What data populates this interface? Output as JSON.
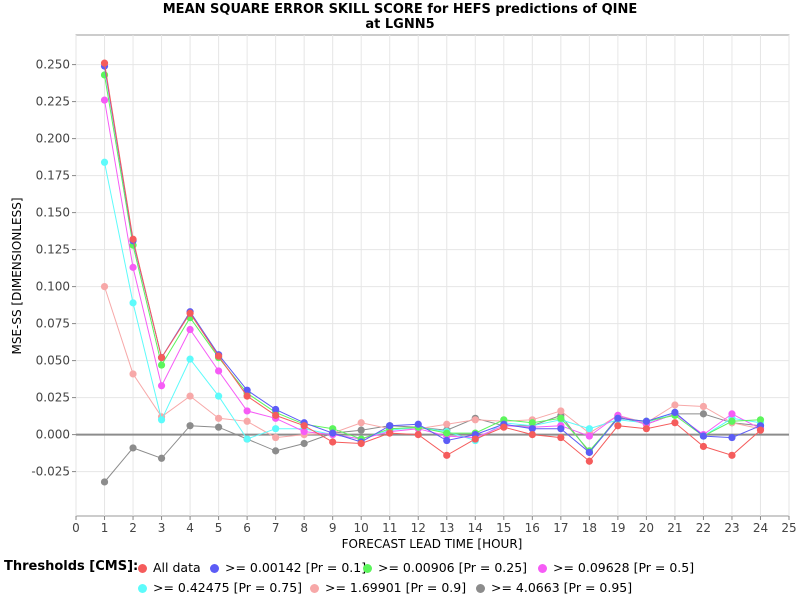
{
  "chart_data": {
    "type": "line",
    "title": [
      "MEAN SQUARE ERROR SKILL SCORE for HEFS predictions of QINE",
      "at LGNN5"
    ],
    "xlabel": "FORECAST LEAD TIME [HOUR]",
    "ylabel": "MSE-SS [DIMENSIONLESS]",
    "xlim": [
      0,
      25
    ],
    "ylim": [
      -0.055,
      0.27
    ],
    "xticks": [
      "0",
      "1",
      "2",
      "3",
      "4",
      "5",
      "6",
      "7",
      "8",
      "9",
      "10",
      "11",
      "12",
      "13",
      "14",
      "15",
      "16",
      "17",
      "18",
      "19",
      "20",
      "21",
      "22",
      "23",
      "24",
      "25"
    ],
    "yticks": [
      "0.250",
      "0.225",
      "0.200",
      "0.175",
      "0.150",
      "0.125",
      "0.100",
      "0.075",
      "0.050",
      "0.025",
      "0.000",
      "-0.025"
    ],
    "x": [
      1,
      2,
      3,
      4,
      5,
      6,
      7,
      8,
      9,
      10,
      11,
      12,
      13,
      14,
      15,
      16,
      17,
      18,
      19,
      20,
      21,
      22,
      23,
      24
    ],
    "legend_title": "Thresholds [CMS]:",
    "series": [
      {
        "name": ">= 4.0663 [Pr = 0.95]",
        "color": "#8c8c8c",
        "values": [
          -0.032,
          -0.009,
          -0.016,
          0.006,
          0.005,
          -0.003,
          -0.011,
          -0.006,
          0.001,
          0.003,
          0.006,
          0.005,
          0.003,
          0.011,
          0.006,
          0.006,
          0.013,
          -0.012,
          0.012,
          0.007,
          0.014,
          0.014,
          0.008,
          0.006
        ]
      },
      {
        "name": ">= 1.69901 [Pr = 0.9]",
        "color": "#f7a8a8",
        "values": [
          0.1,
          0.041,
          0.012,
          0.026,
          0.011,
          0.009,
          -0.002,
          0.0,
          0.001,
          0.008,
          0.004,
          0.004,
          0.007,
          0.01,
          0.009,
          0.01,
          0.016,
          0.001,
          0.013,
          0.008,
          0.02,
          0.019,
          0.008,
          0.004
        ]
      },
      {
        "name": ">= 0.42475 [Pr = 0.75]",
        "color": "#5dfbfb",
        "values": [
          0.184,
          0.089,
          0.01,
          0.051,
          0.026,
          -0.003,
          0.004,
          0.004,
          0.0,
          -0.003,
          0.003,
          0.005,
          0.002,
          -0.004,
          0.008,
          0.006,
          0.01,
          0.004,
          0.01,
          0.008,
          0.015,
          -0.001,
          0.011,
          0.008
        ]
      },
      {
        "name": ">= 0.09628 [Pr = 0.5]",
        "color": "#f65cf6",
        "values": [
          0.226,
          0.113,
          0.033,
          0.071,
          0.043,
          0.016,
          0.011,
          0.002,
          0.0,
          -0.003,
          0.002,
          0.004,
          -0.001,
          -0.002,
          0.006,
          0.005,
          0.006,
          -0.001,
          0.013,
          0.007,
          0.014,
          0.0,
          0.014,
          0.004
        ]
      },
      {
        "name": ">= 0.00906 [Pr = 0.25]",
        "color": "#5cf55c",
        "values": [
          0.243,
          0.128,
          0.047,
          0.079,
          0.052,
          0.028,
          0.015,
          0.007,
          0.004,
          -0.003,
          0.004,
          0.005,
          0.001,
          0.001,
          0.01,
          0.008,
          0.011,
          -0.011,
          0.011,
          0.009,
          0.013,
          -0.001,
          0.009,
          0.01
        ]
      },
      {
        "name": ">= 0.00142 [Pr = 0.1]",
        "color": "#5c5cf6",
        "values": [
          0.249,
          0.131,
          0.052,
          0.083,
          0.054,
          0.03,
          0.017,
          0.008,
          0.001,
          -0.005,
          0.006,
          0.007,
          -0.004,
          0.0,
          0.007,
          0.004,
          0.004,
          -0.012,
          0.011,
          0.009,
          0.015,
          -0.001,
          -0.002,
          0.006
        ]
      },
      {
        "name": "All data",
        "color": "#f55c5c",
        "values": [
          0.251,
          0.132,
          0.052,
          0.082,
          0.053,
          0.026,
          0.013,
          0.006,
          -0.005,
          -0.006,
          0.001,
          0.0,
          -0.014,
          -0.003,
          0.005,
          0.0,
          -0.002,
          -0.018,
          0.006,
          0.004,
          0.008,
          -0.008,
          -0.014,
          0.003
        ]
      }
    ],
    "legend_order": [
      "All data",
      ">= 0.00142 [Pr = 0.1]",
      ">= 0.00906 [Pr = 0.25]",
      ">= 0.09628 [Pr = 0.5]",
      ">= 0.42475 [Pr = 0.75]",
      ">= 1.69901 [Pr = 0.9]",
      ">= 4.0663 [Pr = 0.95]"
    ]
  }
}
